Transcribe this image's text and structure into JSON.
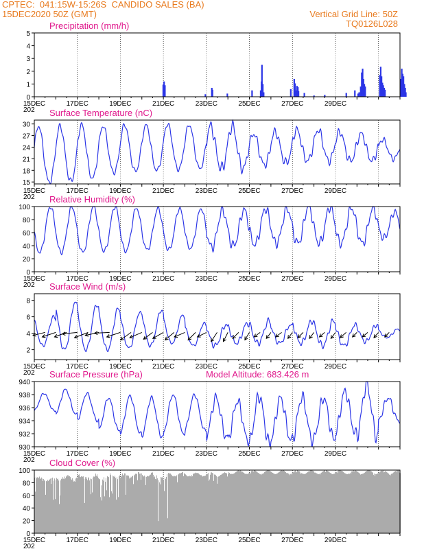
{
  "header": {
    "line1": "CPTEC:  041:15W-15:26S  CANDIDO SALES (BA)",
    "line2": "15DEC2020 50Z (GMT)",
    "right1": "Vertical Grid Line: 50Z",
    "right2": "TQ0126L028"
  },
  "colors": {
    "title": "#e0188c",
    "header": "#e87a1e",
    "series": "#2b35e6",
    "cloud": "#ababab",
    "grid": "#000000"
  },
  "x_axis": {
    "day_labels": [
      "15DEC",
      "17DEC",
      "19DEC",
      "21DEC",
      "23DEC",
      "25DEC",
      "27DEC",
      "29DEC"
    ],
    "year_label": "202"
  },
  "chart_data": [
    {
      "id": "precip",
      "type": "bar",
      "title": "Precipitation (mm/h)",
      "ylim": [
        0,
        5
      ],
      "yticks": [
        0,
        1,
        2,
        3,
        4,
        5
      ],
      "events": [
        {
          "day": 5.99,
          "value": 0.95
        },
        {
          "day": 6.03,
          "value": 1.2
        },
        {
          "day": 6.07,
          "value": 0.9
        },
        {
          "day": 7.95,
          "value": 0.2
        },
        {
          "day": 8.25,
          "value": 0.7
        },
        {
          "day": 8.28,
          "value": 0.55
        },
        {
          "day": 8.97,
          "value": 0.25
        },
        {
          "day": 10.12,
          "value": 0.5
        },
        {
          "day": 10.52,
          "value": 0.5
        },
        {
          "day": 10.56,
          "value": 1.2
        },
        {
          "day": 10.58,
          "value": 2.5
        },
        {
          "day": 10.62,
          "value": 1.0
        },
        {
          "day": 10.66,
          "value": 0.35
        },
        {
          "day": 11.92,
          "value": 0.6
        },
        {
          "day": 12.08,
          "value": 1.4
        },
        {
          "day": 12.12,
          "value": 1.05
        },
        {
          "day": 12.15,
          "value": 0.5
        },
        {
          "day": 12.21,
          "value": 0.85
        },
        {
          "day": 12.25,
          "value": 0.75
        },
        {
          "day": 12.28,
          "value": 0.45
        },
        {
          "day": 12.55,
          "value": 0.3
        },
        {
          "day": 13.0,
          "value": 0.1
        },
        {
          "day": 13.5,
          "value": 0.15
        },
        {
          "day": 14.5,
          "value": 0.3
        },
        {
          "day": 14.9,
          "value": 0.5
        },
        {
          "day": 15.05,
          "value": 0.25
        },
        {
          "day": 15.1,
          "value": 0.35
        },
        {
          "day": 15.17,
          "value": 0.8
        },
        {
          "day": 15.22,
          "value": 1.9
        },
        {
          "day": 15.26,
          "value": 2.2
        },
        {
          "day": 15.3,
          "value": 1.4
        },
        {
          "day": 15.34,
          "value": 1.0
        },
        {
          "day": 15.38,
          "value": 0.8
        },
        {
          "day": 16.06,
          "value": 1.7
        },
        {
          "day": 16.1,
          "value": 2.35
        },
        {
          "day": 16.14,
          "value": 1.6
        },
        {
          "day": 16.18,
          "value": 1.1
        },
        {
          "day": 16.22,
          "value": 0.9
        },
        {
          "day": 16.26,
          "value": 0.7
        },
        {
          "day": 16.3,
          "value": 0.55
        },
        {
          "day": 17.04,
          "value": 1.4
        },
        {
          "day": 17.08,
          "value": 2.2
        },
        {
          "day": 17.12,
          "value": 1.8
        },
        {
          "day": 17.16,
          "value": 1.6
        },
        {
          "day": 17.2,
          "value": 1.0
        },
        {
          "day": 17.24,
          "value": 0.7
        },
        {
          "day": 17.27,
          "value": 0.35
        }
      ]
    },
    {
      "id": "temp",
      "type": "line",
      "title": "Surface Temperature (nC)",
      "ylim": [
        14.5,
        31
      ],
      "yticks": [
        15,
        18,
        21,
        24,
        27,
        30
      ],
      "days": 17,
      "cycle_phase_day": 0.2,
      "daily_max": [
        29.5,
        29.5,
        29.8,
        29.5,
        29.8,
        29.7,
        30,
        29.8,
        29.5,
        29.5,
        27.5,
        28,
        28.5,
        28.5,
        28,
        27.5,
        26
      ],
      "daily_min": [
        15,
        15.2,
        16,
        17.5,
        17.8,
        18,
        18.3,
        18.5,
        18.5,
        18.5,
        19.5,
        20,
        20.5,
        20.5,
        20.5,
        20.5,
        21
      ]
    },
    {
      "id": "rh",
      "type": "line",
      "title": "Relative Humidity (%)",
      "ylim": [
        0,
        100
      ],
      "yticks": [
        0,
        20,
        40,
        60,
        80,
        100
      ],
      "days": 17,
      "cycle_phase_day": 0.75,
      "daily_max": [
        100,
        100,
        100,
        100,
        98,
        97,
        97,
        97,
        95,
        95,
        97,
        97,
        100,
        100,
        98,
        98,
        92
      ],
      "daily_min": [
        30,
        30,
        30,
        32,
        32,
        34,
        34,
        36,
        38,
        40,
        42,
        44,
        44,
        44,
        44,
        44,
        52
      ]
    },
    {
      "id": "wind",
      "type": "line",
      "title": "Surface Wind (m/s)",
      "ylim": [
        0.8,
        8.8
      ],
      "yticks": [
        2,
        4,
        6,
        8
      ],
      "days": 17,
      "cycle_phase_day": 0.9,
      "daily_max": [
        6.0,
        7.8,
        7.5,
        7.0,
        6.5,
        6.8,
        6.2,
        5.2,
        5.0,
        5.2,
        5.5,
        5.0,
        5.5,
        5.5,
        5.0,
        5.0,
        4.5
      ],
      "daily_min": [
        2.5,
        2.0,
        2.0,
        2.0,
        2.2,
        2.5,
        2.8,
        2.5,
        2.5,
        2.8,
        2.8,
        2.8,
        2.8,
        2.5,
        2.5,
        3.0,
        3.5
      ],
      "vectors": [
        {
          "day": 0.5,
          "u": -0.8,
          "v": -0.2
        },
        {
          "day": 1.0,
          "u": -0.9,
          "v": -0.3
        },
        {
          "day": 1.5,
          "u": -0.8,
          "v": -0.3
        },
        {
          "day": 2.0,
          "u": -1.0,
          "v": -0.1
        },
        {
          "day": 2.5,
          "u": -0.9,
          "v": -0.35
        },
        {
          "day": 3.0,
          "u": -0.9,
          "v": -0.2
        },
        {
          "day": 3.5,
          "u": -1.0,
          "v": -0.05
        },
        {
          "day": 4.0,
          "u": -0.9,
          "v": -0.3
        },
        {
          "day": 4.5,
          "u": -0.7,
          "v": -0.5
        },
        {
          "day": 5.0,
          "u": -0.8,
          "v": -0.35
        },
        {
          "day": 5.5,
          "u": -0.6,
          "v": -0.45
        },
        {
          "day": 6.0,
          "u": -0.7,
          "v": -0.4
        },
        {
          "day": 6.5,
          "u": -0.6,
          "v": -0.5
        },
        {
          "day": 7.0,
          "u": -0.7,
          "v": -0.3
        },
        {
          "day": 7.5,
          "u": -0.5,
          "v": -0.5
        },
        {
          "day": 8.0,
          "u": -0.6,
          "v": -0.3
        },
        {
          "day": 8.5,
          "u": -0.4,
          "v": -0.6
        },
        {
          "day": 9.0,
          "u": -0.3,
          "v": -0.6
        },
        {
          "day": 9.5,
          "u": -0.4,
          "v": -0.4
        },
        {
          "day": 10.0,
          "u": -0.3,
          "v": -0.5
        },
        {
          "day": 10.5,
          "u": -0.4,
          "v": -0.3
        },
        {
          "day": 11.0,
          "u": -0.3,
          "v": -0.4
        },
        {
          "day": 11.5,
          "u": -0.4,
          "v": -0.3
        },
        {
          "day": 12.0,
          "u": -0.3,
          "v": -0.4
        },
        {
          "day": 12.5,
          "u": -0.35,
          "v": -0.35
        },
        {
          "day": 13.0,
          "u": -0.3,
          "v": -0.4
        },
        {
          "day": 13.5,
          "u": -0.35,
          "v": -0.3
        },
        {
          "day": 14.0,
          "u": -0.3,
          "v": -0.4
        },
        {
          "day": 14.5,
          "u": -0.4,
          "v": -0.35
        },
        {
          "day": 15.0,
          "u": -0.3,
          "v": -0.3
        },
        {
          "day": 15.5,
          "u": -0.35,
          "v": -0.3
        },
        {
          "day": 16.0,
          "u": -0.3,
          "v": -0.35
        },
        {
          "day": 16.5,
          "u": -0.3,
          "v": -0.3
        }
      ]
    },
    {
      "id": "press",
      "type": "line",
      "title": "Surface Pressure (hPa)",
      "annotation": "Model Altitude: 683.426  m",
      "ylim": [
        930,
        940
      ],
      "yticks": [
        930,
        932,
        934,
        936,
        938,
        940
      ],
      "days": 17,
      "cycle_phase_day": 0.45,
      "daily_max": [
        938.2,
        938.8,
        938.2,
        937.5,
        937.8,
        937.5,
        938,
        938,
        937.5,
        937,
        937.8,
        937.5,
        937.6,
        937.5,
        938.5,
        939.5,
        937.5
      ],
      "daily_min": [
        935.5,
        935,
        934,
        932.5,
        932,
        931.5,
        932,
        932.5,
        931.5,
        931,
        930.5,
        931,
        931,
        931.2,
        932,
        931.5,
        934
      ]
    },
    {
      "id": "cloud",
      "type": "bar",
      "title": "Cloud Cover (%)",
      "ylim": [
        0,
        100
      ],
      "yticks": [
        0,
        20,
        40,
        60,
        80,
        100
      ],
      "segments": [
        {
          "from": 0,
          "to": 1,
          "level": 88,
          "dip": 50
        },
        {
          "from": 1,
          "to": 2,
          "level": 90,
          "dip": 45
        },
        {
          "from": 2,
          "to": 3.5,
          "level": 92,
          "dip": 40
        },
        {
          "from": 3.5,
          "to": 4.5,
          "level": 93,
          "dip": 55
        },
        {
          "from": 4.5,
          "to": 5.5,
          "level": 94,
          "dip": 70
        },
        {
          "from": 5.5,
          "to": 6.2,
          "level": 92,
          "dip": 10
        },
        {
          "from": 6.2,
          "to": 9,
          "level": 94,
          "dip": 80
        },
        {
          "from": 9,
          "to": 17,
          "level": 97,
          "dip": 93
        }
      ]
    }
  ]
}
